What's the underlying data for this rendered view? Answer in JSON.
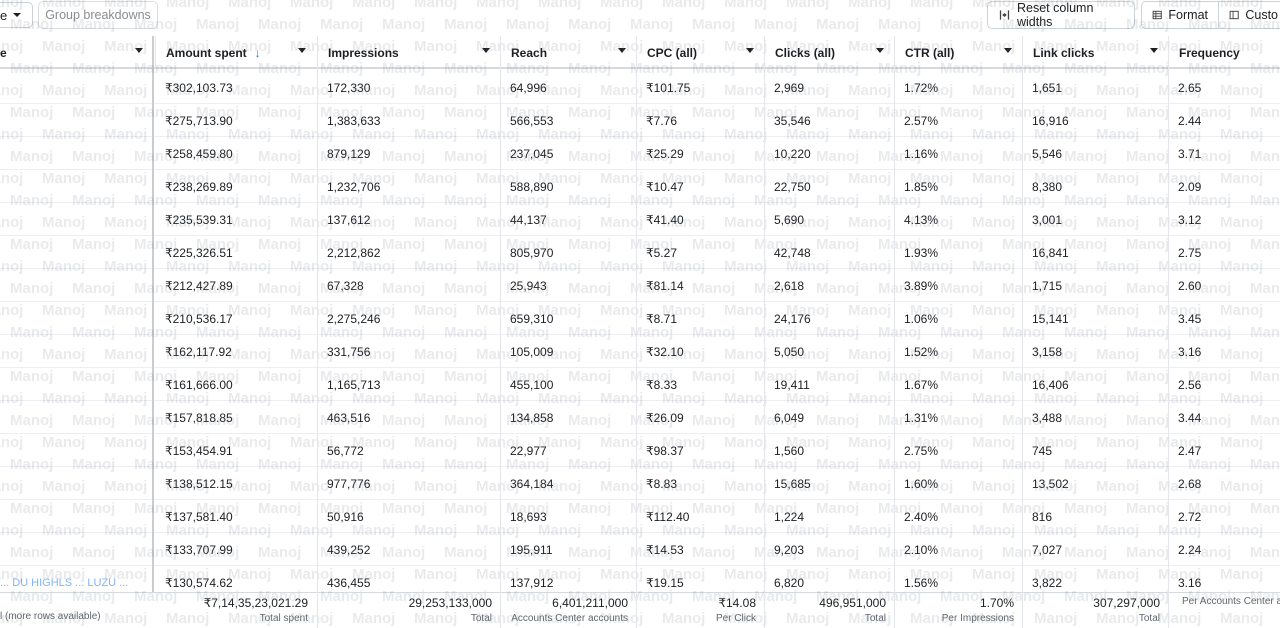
{
  "toolbar": {
    "dropdown_text": "e",
    "group_breakdowns": "Group breakdowns",
    "reset_column_widths": "Reset column widths",
    "format": "Format",
    "customize": "Custo"
  },
  "columns": [
    {
      "label": "e",
      "key": "name"
    },
    {
      "label": "Amount spent",
      "key": "spent",
      "sort": "↓"
    },
    {
      "label": "Impressions",
      "key": "impr"
    },
    {
      "label": "Reach",
      "key": "reach"
    },
    {
      "label": "CPC (all)",
      "key": "cpc"
    },
    {
      "label": "Clicks (all)",
      "key": "clicks"
    },
    {
      "label": "CTR (all)",
      "key": "ctr"
    },
    {
      "label": "Link clicks",
      "key": "link"
    },
    {
      "label": "Frequency",
      "key": "freq"
    }
  ],
  "rows": [
    {
      "spent": "₹302,103.73",
      "impr": "172,330",
      "reach": "64,996",
      "cpc": "₹101.75",
      "clicks": "2,969",
      "ctr": "1.72%",
      "link": "1,651",
      "freq": "2.65"
    },
    {
      "spent": "₹275,713.90",
      "impr": "1,383,633",
      "reach": "566,553",
      "cpc": "₹7.76",
      "clicks": "35,546",
      "ctr": "2.57%",
      "link": "16,916",
      "freq": "2.44"
    },
    {
      "spent": "₹258,459.80",
      "impr": "879,129",
      "reach": "237,045",
      "cpc": "₹25.29",
      "clicks": "10,220",
      "ctr": "1.16%",
      "link": "5,546",
      "freq": "3.71"
    },
    {
      "spent": "₹238,269.89",
      "impr": "1,232,706",
      "reach": "588,890",
      "cpc": "₹10.47",
      "clicks": "22,750",
      "ctr": "1.85%",
      "link": "8,380",
      "freq": "2.09"
    },
    {
      "spent": "₹235,539.31",
      "impr": "137,612",
      "reach": "44,137",
      "cpc": "₹41.40",
      "clicks": "5,690",
      "ctr": "4.13%",
      "link": "3,001",
      "freq": "3.12"
    },
    {
      "spent": "₹225,326.51",
      "impr": "2,212,862",
      "reach": "805,970",
      "cpc": "₹5.27",
      "clicks": "42,748",
      "ctr": "1.93%",
      "link": "16,841",
      "freq": "2.75"
    },
    {
      "spent": "₹212,427.89",
      "impr": "67,328",
      "reach": "25,943",
      "cpc": "₹81.14",
      "clicks": "2,618",
      "ctr": "3.89%",
      "link": "1,715",
      "freq": "2.60"
    },
    {
      "spent": "₹210,536.17",
      "impr": "2,275,246",
      "reach": "659,310",
      "cpc": "₹8.71",
      "clicks": "24,176",
      "ctr": "1.06%",
      "link": "15,141",
      "freq": "3.45"
    },
    {
      "spent": "₹162,117.92",
      "impr": "331,756",
      "reach": "105,009",
      "cpc": "₹32.10",
      "clicks": "5,050",
      "ctr": "1.52%",
      "link": "3,158",
      "freq": "3.16"
    },
    {
      "spent": "₹161,666.00",
      "impr": "1,165,713",
      "reach": "455,100",
      "cpc": "₹8.33",
      "clicks": "19,411",
      "ctr": "1.67%",
      "link": "16,406",
      "freq": "2.56"
    },
    {
      "spent": "₹157,818.85",
      "impr": "463,516",
      "reach": "134,858",
      "cpc": "₹26.09",
      "clicks": "6,049",
      "ctr": "1.31%",
      "link": "3,488",
      "freq": "3.44"
    },
    {
      "spent": "₹153,454.91",
      "impr": "56,772",
      "reach": "22,977",
      "cpc": "₹98.37",
      "clicks": "1,560",
      "ctr": "2.75%",
      "link": "745",
      "freq": "2.47"
    },
    {
      "spent": "₹138,512.15",
      "impr": "977,776",
      "reach": "364,184",
      "cpc": "₹8.83",
      "clicks": "15,685",
      "ctr": "1.60%",
      "link": "13,502",
      "freq": "2.68"
    },
    {
      "spent": "₹137,581.40",
      "impr": "50,916",
      "reach": "18,693",
      "cpc": "₹112.40",
      "clicks": "1,224",
      "ctr": "2.40%",
      "link": "816",
      "freq": "2.72"
    },
    {
      "spent": "₹133,707.99",
      "impr": "439,252",
      "reach": "195,911",
      "cpc": "₹14.53",
      "clicks": "9,203",
      "ctr": "2.10%",
      "link": "7,027",
      "freq": "2.24"
    },
    {
      "spent": "₹130,574.62",
      "impr": "436,455",
      "reach": "137,912",
      "cpc": "₹19.15",
      "clicks": "6,820",
      "ctr": "1.56%",
      "link": "3,822",
      "freq": "3.16"
    }
  ],
  "footer": {
    "more_rows": "l (more rows available)",
    "sub_link_fragment": "... DU HIGHLS ... LUZU ...",
    "totals": {
      "spent": {
        "value": "₹7,14,35,23,021.29",
        "label": "Total spent"
      },
      "impr": {
        "value": "29,253,133,000",
        "label": "Total"
      },
      "reach": {
        "value": "6,401,211,000",
        "label": "Accounts Center accounts"
      },
      "cpc": {
        "value": "₹14.08",
        "label": "Per Click"
      },
      "clicks": {
        "value": "496,951,000",
        "label": "Total"
      },
      "ctr": {
        "value": "1.70%",
        "label": "Per Impressions"
      },
      "link": {
        "value": "307,297,000",
        "label": "Total"
      },
      "freq": {
        "value": "",
        "label": "Per Accounts Center ac"
      }
    }
  },
  "watermark": "Manoj",
  "colors": {
    "accent": "#1877f2",
    "border": "#e4e6eb",
    "text": "#1c1e21",
    "muted": "#606770"
  }
}
